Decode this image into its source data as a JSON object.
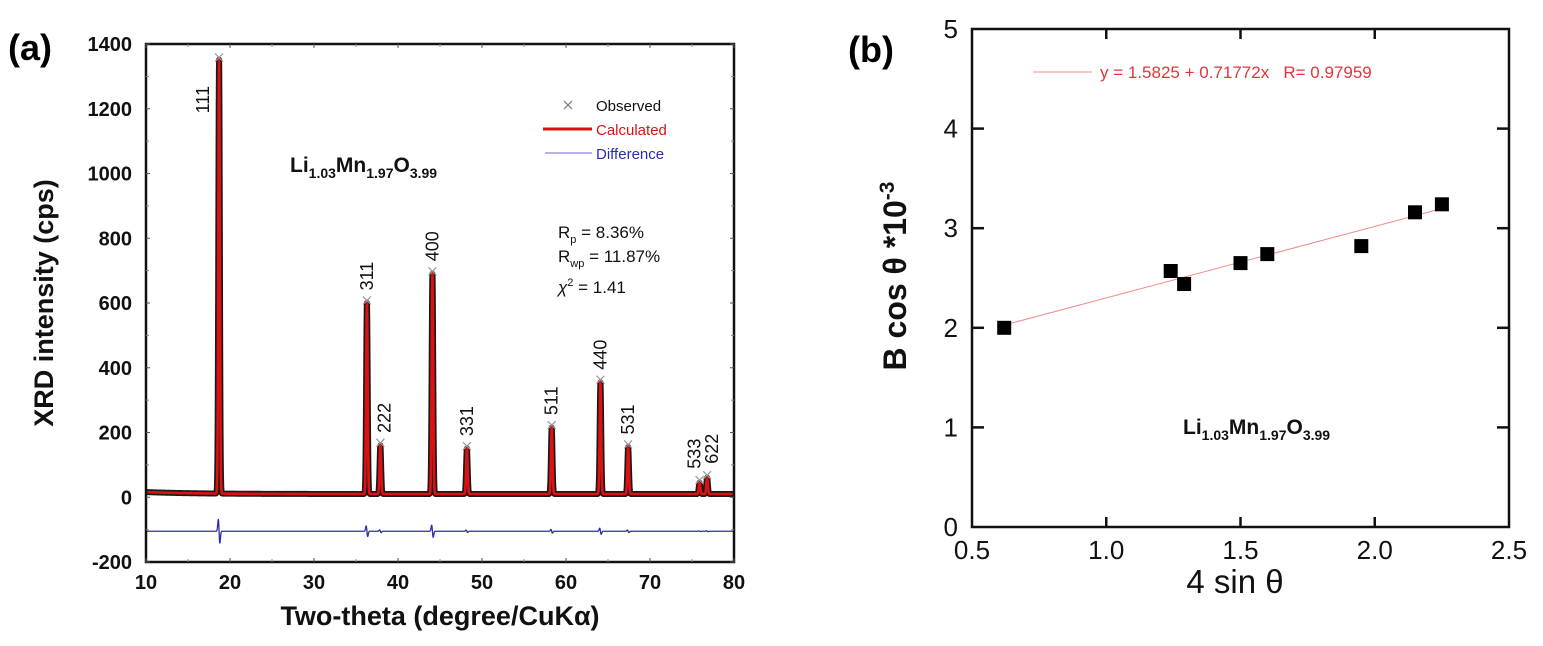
{
  "colors": {
    "observed": "#555555",
    "calculated": "#dd1111",
    "difference": "#2b2bb5",
    "fit_line": "#f08a8a",
    "fit_text": "#e0353b",
    "points": "#000000"
  },
  "chart_data": [
    {
      "type": "line",
      "panel_label": "(a)",
      "title": "",
      "xlabel": "Two-theta (degree/CuKα)",
      "ylabel": "XRD intensity (cps)",
      "xlim": [
        10,
        80
      ],
      "ylim": [
        -200,
        1400
      ],
      "x_ticks": [
        "10",
        "20",
        "30",
        "40",
        "50",
        "60",
        "70",
        "80"
      ],
      "y_ticks": [
        "-200",
        "0",
        "200",
        "400",
        "600",
        "800",
        "1000",
        "1200",
        "1400"
      ],
      "grid": false,
      "legend": {
        "placement": "top-right",
        "entries": [
          "Observed",
          "Calculated",
          "Difference"
        ]
      },
      "compound": {
        "base": [
          "Li",
          "Mn",
          "O"
        ],
        "subs": [
          "1.03",
          "1.97",
          "3.99"
        ]
      },
      "stats": [
        {
          "sym": "R",
          "sub": "p",
          "sup": "",
          "text": " = 8.36%"
        },
        {
          "sym": "R",
          "sub": "wp",
          "sup": "",
          "text": " = 11.87%"
        },
        {
          "sym": "χ",
          "sub": "",
          "sup": "2",
          "text": " = 1.41"
        }
      ],
      "background_level": 10,
      "difference_offset": -105,
      "peaks": [
        {
          "hkl": "111",
          "two_theta": 18.7,
          "intensity": 1340
        },
        {
          "hkl": "311",
          "two_theta": 36.3,
          "intensity": 590
        },
        {
          "hkl": "222",
          "two_theta": 37.9,
          "intensity": 150
        },
        {
          "hkl": "400",
          "two_theta": 44.1,
          "intensity": 680
        },
        {
          "hkl": "331",
          "two_theta": 48.2,
          "intensity": 140
        },
        {
          "hkl": "511",
          "two_theta": 58.3,
          "intensity": 205
        },
        {
          "hkl": "440",
          "two_theta": 64.1,
          "intensity": 345
        },
        {
          "hkl": "531",
          "two_theta": 67.4,
          "intensity": 145
        },
        {
          "hkl": "533",
          "two_theta": 75.9,
          "intensity": 35
        },
        {
          "hkl": "622",
          "two_theta": 76.8,
          "intensity": 50
        }
      ]
    },
    {
      "type": "scatter",
      "panel_label": "(b)",
      "title": "",
      "xlabel": "4 sin θ",
      "ylabel": "B cos θ *10-3",
      "ylabel_parts": {
        "main": "B cos θ *10",
        "sup": "-3"
      },
      "xlim": [
        0.5,
        2.5
      ],
      "ylim": [
        0,
        5
      ],
      "x_ticks": [
        "0.5",
        "1.0",
        "1.5",
        "2.0",
        "2.5"
      ],
      "y_ticks": [
        "0",
        "1",
        "2",
        "3",
        "4",
        "5"
      ],
      "grid": false,
      "legend": {
        "placement": "top-left",
        "entries": [
          "y = 1.5825 + 0.71772x   R= 0.97959"
        ]
      },
      "fit": {
        "intercept": 1.5825,
        "slope": 0.71772,
        "R": 0.97959,
        "label": "y = 1.5825 + 0.71772x   R= 0.97959"
      },
      "compound": {
        "base": [
          "Li",
          "Mn",
          "O"
        ],
        "subs": [
          "1.03",
          "1.97",
          "3.99"
        ]
      },
      "x": [
        0.62,
        1.24,
        1.29,
        1.5,
        1.6,
        1.95,
        2.15,
        2.25
      ],
      "y": [
        2.0,
        2.57,
        2.44,
        2.65,
        2.74,
        2.82,
        3.16,
        3.24
      ]
    }
  ]
}
